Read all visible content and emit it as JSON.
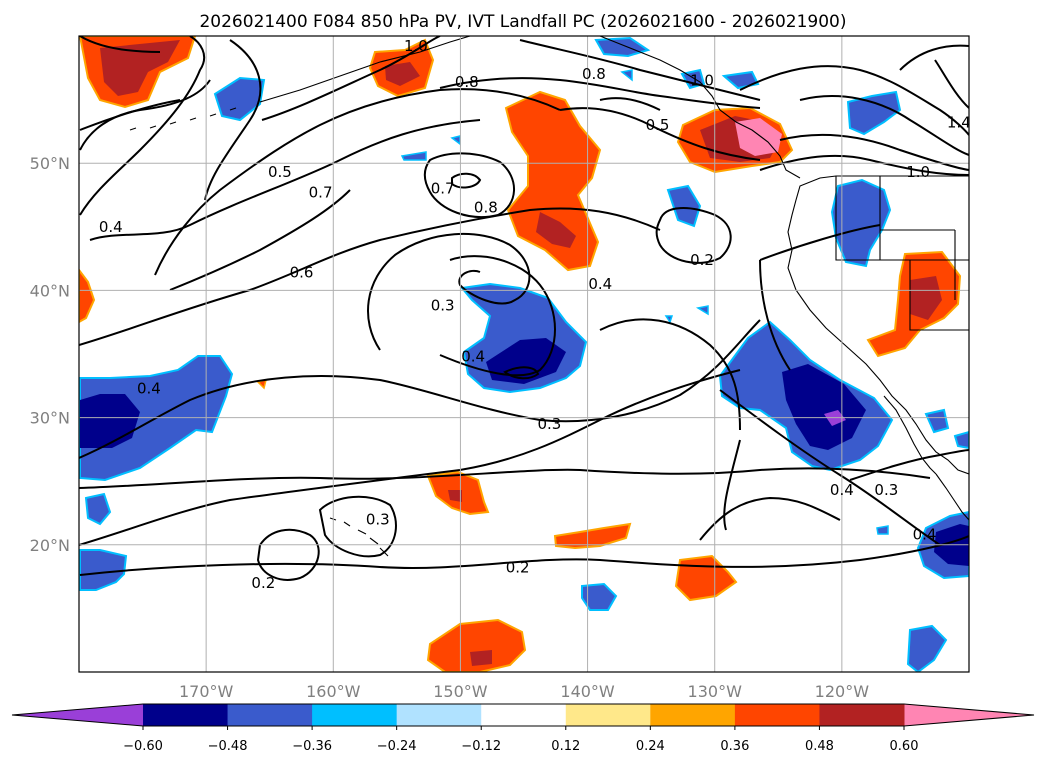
{
  "chart_data": {
    "type": "contour-map",
    "title": "2026021400 F084 850 hPa PV, IVT Landfall PC (2026021600 - 2026021900)",
    "lon_range": [
      -180,
      -110
    ],
    "lat_range": [
      10,
      60
    ],
    "x_ticks": [
      {
        "lon": -170,
        "label": "170°W"
      },
      {
        "lon": -160,
        "label": "160°W"
      },
      {
        "lon": -150,
        "label": "150°W"
      },
      {
        "lon": -140,
        "label": "140°W"
      },
      {
        "lon": -130,
        "label": "130°W"
      },
      {
        "lon": -120,
        "label": "120°W"
      }
    ],
    "y_ticks": [
      {
        "lat": 20,
        "label": "20°N"
      },
      {
        "lat": 30,
        "label": "30°N"
      },
      {
        "lat": 40,
        "label": "40°N"
      },
      {
        "lat": 50,
        "label": "50°N"
      }
    ],
    "colorbar": {
      "levels": [
        -0.6,
        -0.48,
        -0.36,
        -0.24,
        -0.12,
        0.12,
        0.24,
        0.36,
        0.48,
        0.6
      ],
      "tick_labels": [
        "−0.60",
        "−0.48",
        "−0.36",
        "−0.24",
        "−0.12",
        "0.12",
        "0.24",
        "0.36",
        "0.48",
        "0.60"
      ],
      "colors": [
        "#9a3fd8",
        "#00008b",
        "#3a5bcc",
        "#00bfff",
        "#b0e2ff",
        "#ffffff",
        "#ffe88a",
        "#ffa500",
        "#ff4500",
        "#b22222",
        "#ff85b3"
      ],
      "extend": "both"
    },
    "contour_labels": [
      {
        "text": "1.0",
        "lon": -153.5,
        "lat": 59.2
      },
      {
        "text": "0.8",
        "lon": -149.5,
        "lat": 56.4
      },
      {
        "text": "0.8",
        "lon": -139.5,
        "lat": 57.0
      },
      {
        "text": "1.0",
        "lon": -131.0,
        "lat": 56.5
      },
      {
        "text": "0.5",
        "lon": -134.5,
        "lat": 53.0
      },
      {
        "text": "1.4",
        "lon": -110.8,
        "lat": 53.2
      },
      {
        "text": "1.0",
        "lon": -114.0,
        "lat": 49.3
      },
      {
        "text": "0.5",
        "lon": -164.2,
        "lat": 49.3
      },
      {
        "text": "0.7",
        "lon": -161.0,
        "lat": 47.7
      },
      {
        "text": "0.7",
        "lon": -151.4,
        "lat": 48.0
      },
      {
        "text": "0.8",
        "lon": -148.0,
        "lat": 46.5
      },
      {
        "text": "0.4",
        "lon": -177.5,
        "lat": 45.0
      },
      {
        "text": "0.2",
        "lon": -131.0,
        "lat": 42.4
      },
      {
        "text": "0.6",
        "lon": -162.5,
        "lat": 41.4
      },
      {
        "text": "0.4",
        "lon": -139.0,
        "lat": 40.5
      },
      {
        "text": "0.3",
        "lon": -151.4,
        "lat": 38.8
      },
      {
        "text": "0.4",
        "lon": -149.0,
        "lat": 34.8
      },
      {
        "text": "0.4",
        "lon": -174.5,
        "lat": 32.3
      },
      {
        "text": "0.3",
        "lon": -143.0,
        "lat": 29.5
      },
      {
        "text": "0.4",
        "lon": -120.0,
        "lat": 24.3
      },
      {
        "text": "0.3",
        "lon": -116.5,
        "lat": 24.3
      },
      {
        "text": "0.3",
        "lon": -156.5,
        "lat": 22.0
      },
      {
        "text": "0.4",
        "lon": -113.5,
        "lat": 20.8
      },
      {
        "text": "0.2",
        "lon": -145.5,
        "lat": 18.2
      },
      {
        "text": "0.2",
        "lon": -165.5,
        "lat": 17.0
      }
    ]
  }
}
